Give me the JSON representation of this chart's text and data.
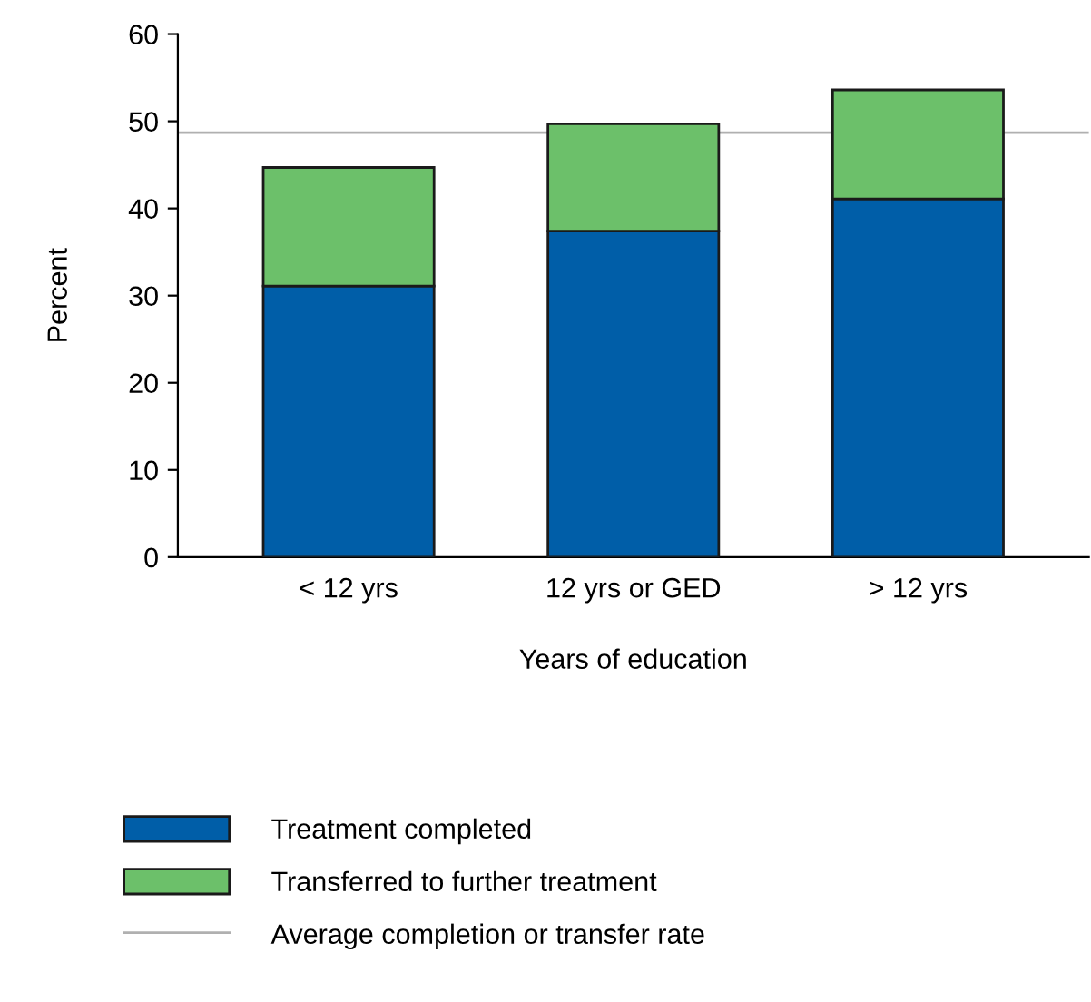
{
  "chart_data": {
    "type": "bar",
    "stacked": true,
    "xlabel": "Years of education",
    "ylabel": "Percent",
    "categories": [
      "< 12 yrs",
      "12 yrs or GED",
      "> 12 yrs"
    ],
    "series": [
      {
        "name": "Treatment completed",
        "color": "#005ea8",
        "values": [
          31.1,
          37.4,
          41.1
        ]
      },
      {
        "name": "Transferred to further treatment",
        "color": "#6cc06a",
        "values": [
          13.6,
          12.3,
          12.5
        ]
      }
    ],
    "ref_lines": [
      {
        "axis": "y",
        "value": 48.7,
        "label": "Average completion or transfer rate",
        "color": "#b0b0b0",
        "line_style": "solid"
      }
    ],
    "ylim": [
      0,
      60
    ],
    "yticks": [
      0,
      10,
      20,
      30,
      40,
      50,
      60
    ],
    "grid": false,
    "legend": "bottom"
  }
}
